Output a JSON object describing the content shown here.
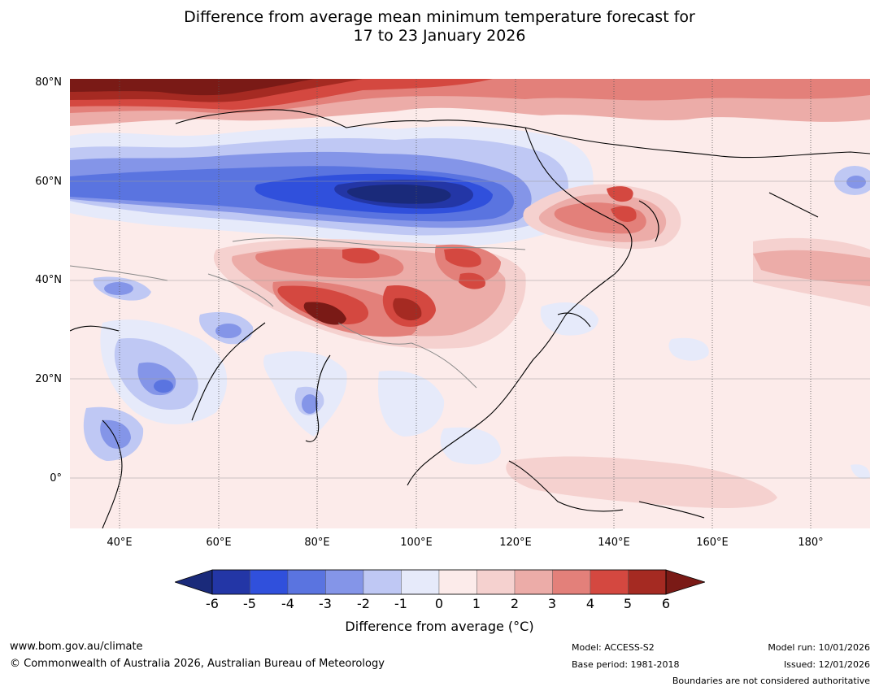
{
  "title": {
    "line1": "Difference from average mean minimum temperature forecast for",
    "line2": "17 to 23 January 2026"
  },
  "map": {
    "lat_labels": [
      "80°N",
      "60°N",
      "40°N",
      "20°N",
      "0°"
    ],
    "lon_labels": [
      "40°E",
      "60°E",
      "80°E",
      "100°E",
      "120°E",
      "140°E",
      "160°E",
      "180°"
    ]
  },
  "colorbar": {
    "tick_labels": [
      "-6",
      "-5",
      "-4",
      "-3",
      "-2",
      "-1",
      "0",
      "1",
      "2",
      "3",
      "4",
      "5",
      "6"
    ],
    "low_extend_color": "#1a2a7a",
    "high_extend_color": "#7a1a16",
    "colors": [
      "#2336a6",
      "#3050dc",
      "#5a74e0",
      "#8495e8",
      "#bfc8f4",
      "#e6eafa",
      "#fcebea",
      "#f5d1cf",
      "#ecaca8",
      "#e3807a",
      "#d44840",
      "#a52a22"
    ],
    "title": "Difference from average (°C)"
  },
  "footer": {
    "website": "www.bom.gov.au/climate",
    "copyright": "© Commonwealth of Australia 2026, Australian Bureau of Meteorology",
    "model": "Model: ACCESS-S2",
    "base_period": "Base period: 1981-2018",
    "model_run": "Model run: 10/01/2026",
    "issued": "Issued: 12/01/2026",
    "disclaimer": "Boundaries are not considered authoritative"
  }
}
